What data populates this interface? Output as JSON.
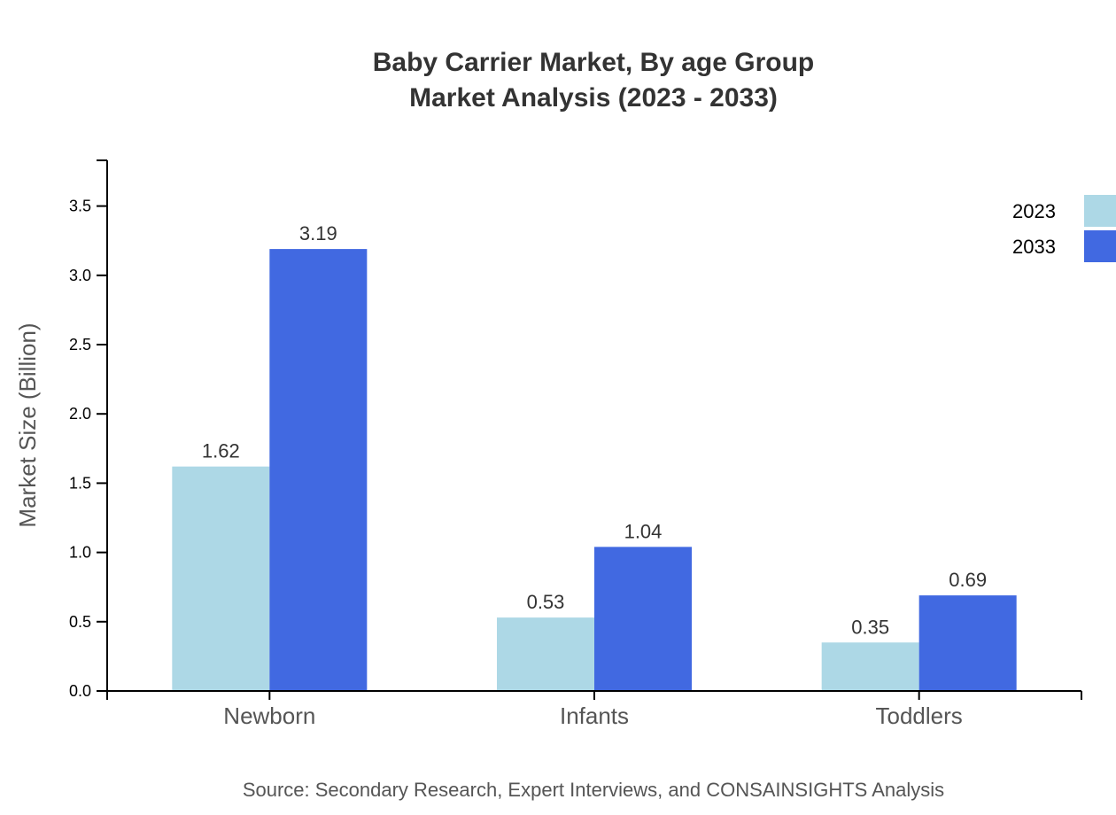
{
  "chart_data": {
    "type": "bar",
    "title": "Baby Carrier Market, By age Group",
    "subtitle": "Market Analysis (2023 - 2033)",
    "xlabel": "",
    "ylabel": "Market Size (Billion)",
    "categories": [
      "Newborn",
      "Infants",
      "Toddlers"
    ],
    "series": [
      {
        "name": "2023",
        "color": "#add8e6",
        "values": [
          1.62,
          0.53,
          0.35
        ]
      },
      {
        "name": "2033",
        "color": "#4169e1",
        "values": [
          3.19,
          1.04,
          0.69
        ]
      }
    ],
    "ylim": [
      0,
      3.83
    ],
    "yticks": [
      "0.0",
      "0.5",
      "1.0",
      "1.5",
      "2.0",
      "2.5",
      "3.0",
      "3.5"
    ],
    "grid": false,
    "legend_position": "top-right",
    "source": "Source: Secondary Research, Expert Interviews, and CONSAINSIGHTS Analysis"
  }
}
